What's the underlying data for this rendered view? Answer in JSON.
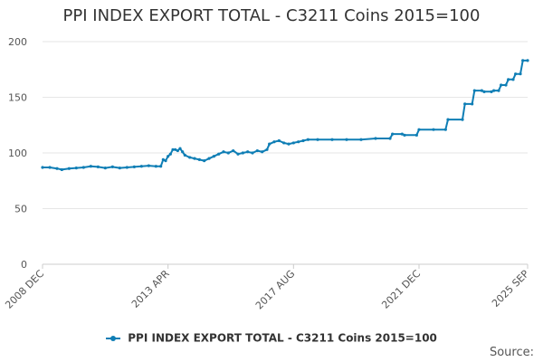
{
  "chart_data": {
    "type": "line",
    "title": "PPI INDEX EXPORT TOTAL - C3211 Coins 2015=100",
    "xlabel": "",
    "ylabel": "",
    "ylim": [
      0,
      200
    ],
    "yticks": [
      "0",
      "50",
      "100",
      "150",
      "200"
    ],
    "xticks": [
      "2008 DEC",
      "2013 APR",
      "2017 AUG",
      "2021 DEC",
      "2025 SEP"
    ],
    "grid": true,
    "legend_position": "bottom",
    "source_label": "Source:",
    "series": [
      {
        "name": "PPI INDEX EXPORT TOTAL - C3211 Coins 2015=100",
        "color": "#0f7eb5",
        "points": [
          [
            "2008-12",
            87
          ],
          [
            "2009-03",
            87
          ],
          [
            "2009-06",
            86
          ],
          [
            "2009-08",
            85
          ],
          [
            "2009-11",
            86
          ],
          [
            "2010-02",
            86.5
          ],
          [
            "2010-05",
            87
          ],
          [
            "2010-08",
            88
          ],
          [
            "2010-11",
            87.5
          ],
          [
            "2011-02",
            86.5
          ],
          [
            "2011-05",
            87.5
          ],
          [
            "2011-08",
            86.5
          ],
          [
            "2011-11",
            87
          ],
          [
            "2012-02",
            87.5
          ],
          [
            "2012-05",
            88
          ],
          [
            "2012-08",
            88.5
          ],
          [
            "2012-11",
            88
          ],
          [
            "2013-01",
            88
          ],
          [
            "2013-02",
            94
          ],
          [
            "2013-03",
            93
          ],
          [
            "2013-04",
            97
          ],
          [
            "2013-05",
            99
          ],
          [
            "2013-06",
            103
          ],
          [
            "2013-07",
            103
          ],
          [
            "2013-08",
            102
          ],
          [
            "2013-09",
            104
          ],
          [
            "2013-10",
            101
          ],
          [
            "2013-11",
            98
          ],
          [
            "2014-01",
            96
          ],
          [
            "2014-03",
            95
          ],
          [
            "2014-05",
            94
          ],
          [
            "2014-07",
            93
          ],
          [
            "2014-09",
            95
          ],
          [
            "2014-11",
            97
          ],
          [
            "2015-01",
            99
          ],
          [
            "2015-03",
            101
          ],
          [
            "2015-05",
            100
          ],
          [
            "2015-07",
            102
          ],
          [
            "2015-09",
            99
          ],
          [
            "2015-11",
            100
          ],
          [
            "2016-01",
            101
          ],
          [
            "2016-03",
            100
          ],
          [
            "2016-05",
            102
          ],
          [
            "2016-07",
            101
          ],
          [
            "2016-09",
            103
          ],
          [
            "2016-10",
            108
          ],
          [
            "2016-12",
            110
          ],
          [
            "2017-02",
            111
          ],
          [
            "2017-04",
            109
          ],
          [
            "2017-06",
            108
          ],
          [
            "2017-08",
            109
          ],
          [
            "2017-10",
            110
          ],
          [
            "2017-12",
            111
          ],
          [
            "2018-02",
            112
          ],
          [
            "2018-06",
            112
          ],
          [
            "2018-12",
            112
          ],
          [
            "2019-06",
            112
          ],
          [
            "2019-12",
            112
          ],
          [
            "2020-06",
            113
          ],
          [
            "2020-12",
            113
          ],
          [
            "2021-01",
            117
          ],
          [
            "2021-05",
            117
          ],
          [
            "2021-06",
            116
          ],
          [
            "2021-11",
            116
          ],
          [
            "2021-12",
            121
          ],
          [
            "2022-06",
            121
          ],
          [
            "2022-11",
            121
          ],
          [
            "2022-12",
            130
          ],
          [
            "2023-06",
            130
          ],
          [
            "2023-07",
            144
          ],
          [
            "2023-10",
            144
          ],
          [
            "2023-11",
            156
          ],
          [
            "2024-02",
            156
          ],
          [
            "2024-03",
            155
          ],
          [
            "2024-06",
            155
          ],
          [
            "2024-07",
            156
          ],
          [
            "2024-09",
            156
          ],
          [
            "2024-10",
            161
          ],
          [
            "2024-12",
            161
          ],
          [
            "2025-01",
            166
          ],
          [
            "2025-03",
            166
          ],
          [
            "2025-04",
            171
          ],
          [
            "2025-06",
            171
          ],
          [
            "2025-07",
            183
          ],
          [
            "2025-09",
            183
          ]
        ]
      }
    ]
  }
}
